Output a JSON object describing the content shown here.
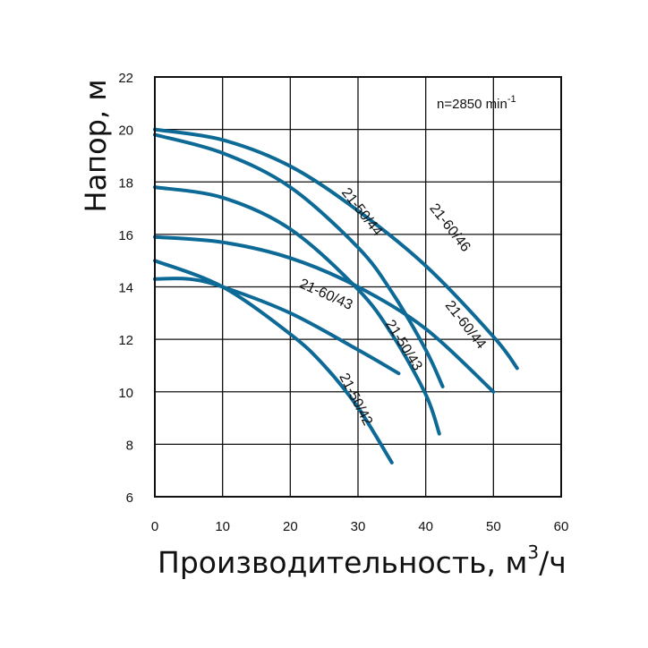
{
  "chart_data": {
    "type": "line",
    "title": "",
    "xlabel": "Производительность, м",
    "xlabel_sup": "3",
    "xlabel_unit": "/ч",
    "ylabel": "Напор, м",
    "xlim": [
      0,
      60
    ],
    "ylim": [
      6,
      22
    ],
    "x_ticks": [
      0,
      10,
      20,
      30,
      40,
      50,
      60
    ],
    "y_ticks": [
      6,
      8,
      10,
      12,
      14,
      16,
      18,
      20,
      22
    ],
    "grid": true,
    "annotation": {
      "text": "n=2850 min",
      "sup": "-1"
    },
    "line_color": "#0d6a96",
    "series": [
      {
        "name": "21-60/46",
        "x": [
          0,
          10,
          20,
          30,
          40,
          50,
          53.5
        ],
        "y": [
          20.0,
          19.6,
          18.6,
          16.9,
          14.8,
          12.1,
          10.9
        ]
      },
      {
        "name": "21-50/44",
        "x": [
          0,
          10,
          20,
          30,
          35,
          40,
          42.5
        ],
        "y": [
          19.8,
          19.1,
          17.8,
          15.5,
          13.8,
          11.6,
          10.2
        ]
      },
      {
        "name": "21-60/44",
        "x": [
          0,
          10,
          20,
          30,
          40,
          50
        ],
        "y": [
          15.9,
          15.7,
          15.1,
          14.0,
          12.4,
          10.0
        ]
      },
      {
        "name": "21-60/43",
        "x": [
          0,
          5,
          10,
          20,
          30,
          36
        ],
        "y": [
          14.3,
          14.3,
          14.0,
          13.0,
          11.6,
          10.7
        ]
      },
      {
        "name": "21-50/43",
        "x": [
          0,
          10,
          20,
          30,
          35,
          40,
          42
        ],
        "y": [
          17.8,
          17.4,
          16.2,
          13.9,
          12.2,
          9.9,
          8.4
        ]
      },
      {
        "name": "21-50/42",
        "x": [
          0,
          10,
          20,
          25,
          30,
          35
        ],
        "y": [
          15.0,
          14.0,
          12.2,
          11.0,
          9.4,
          7.3
        ]
      }
    ]
  }
}
